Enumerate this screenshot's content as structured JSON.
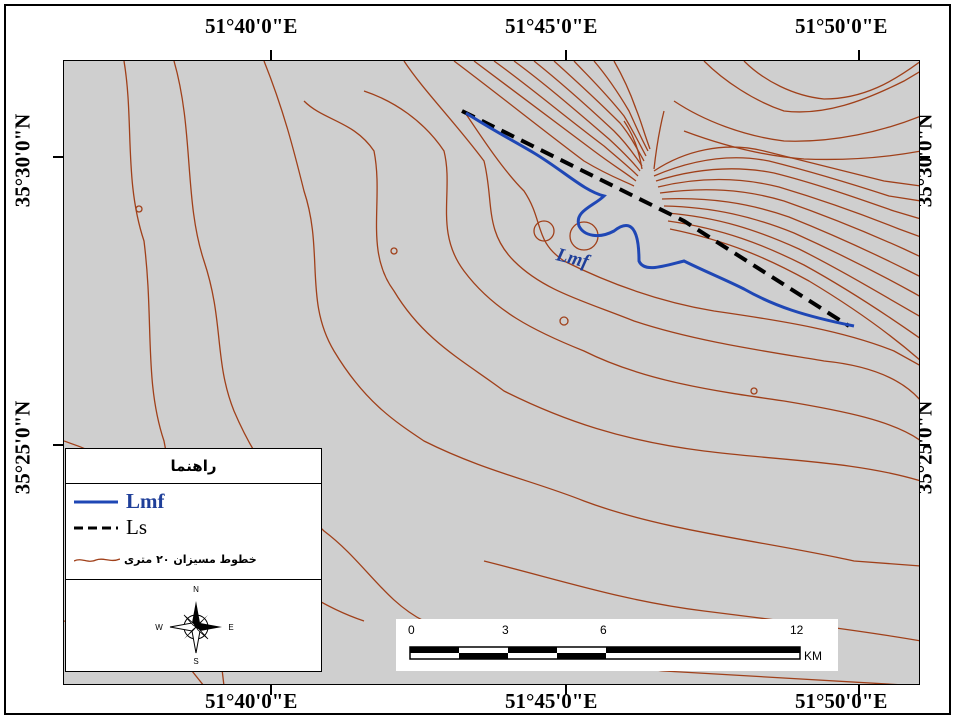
{
  "coordinates": {
    "top": [
      "51°40'0\"E",
      "51°45'0\"E",
      "51°50'0\"E"
    ],
    "bottom": [
      "51°40'0\"E",
      "51°45'0\"E",
      "51°50'0\"E"
    ],
    "left": [
      "35°30'0\"N",
      "35°25'0\"N"
    ],
    "right": [
      "35°30'0\"N",
      "35°25'0\"N"
    ]
  },
  "map_label": "Lmf",
  "legend": {
    "title": "راهنما",
    "items": [
      {
        "label": "Lmf",
        "color": "#1f47b5",
        "style": "solid"
      },
      {
        "label": "Ls",
        "color": "#000000",
        "style": "dashed"
      },
      {
        "label": "خطوط مسیزان ۲۰ متری",
        "color": "#a0401a",
        "style": "contour"
      }
    ],
    "north_arrow": {
      "N": "N",
      "S": "S",
      "E": "E",
      "W": "W"
    }
  },
  "scalebar": {
    "ticks": [
      "0",
      "3",
      "6",
      "12"
    ],
    "unit": "KM"
  },
  "colors": {
    "background": "#cfcfcf",
    "contour": "#a0401a",
    "lmf": "#1f47b5",
    "ls": "#000000"
  }
}
